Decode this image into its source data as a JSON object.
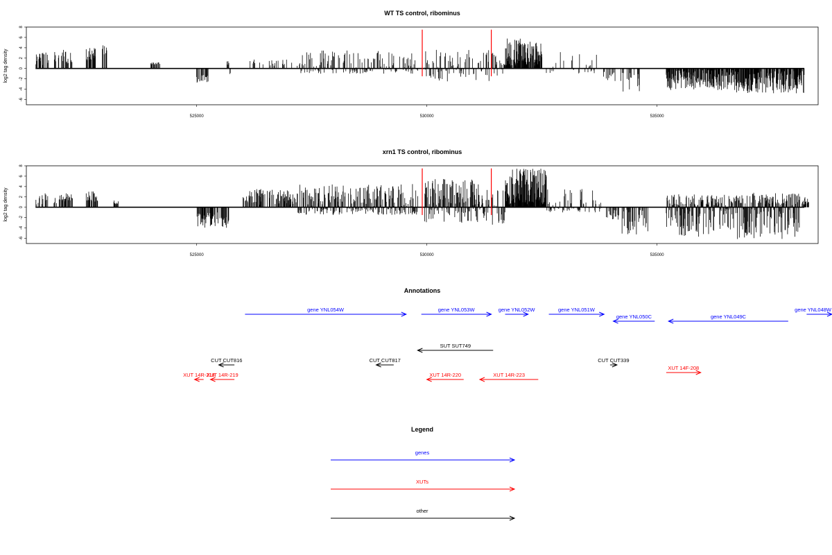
{
  "chart_data": [
    {
      "type": "bar",
      "title": "WT TS control, ribominus",
      "ylabel": "log2 tag density",
      "xlabel": "",
      "xlim": [
        521300,
        538500
      ],
      "ylim": [
        -7,
        8
      ],
      "yticks": [
        8,
        6,
        4,
        2,
        0,
        -2,
        -4,
        -6
      ],
      "xticks": [
        525000,
        530000,
        535000
      ],
      "xticklabels": [
        "525000",
        "530000",
        "535000"
      ],
      "markers": [
        529900,
        531400
      ],
      "segments": [
        {
          "from": 521500,
          "to": 521800,
          "min": 0.5,
          "max": 3.4,
          "density": 0.5,
          "seed": 11
        },
        {
          "from": 521900,
          "to": 522300,
          "min": 0.8,
          "max": 3.7,
          "density": 0.5,
          "seed": 12
        },
        {
          "from": 522600,
          "to": 522800,
          "min": 1.5,
          "max": 4.0,
          "density": 0.7,
          "seed": 13
        },
        {
          "from": 522950,
          "to": 523050,
          "min": 2.0,
          "max": 4.6,
          "density": 0.6,
          "seed": 14
        },
        {
          "from": 524000,
          "to": 524200,
          "min": 0.8,
          "max": 1.2,
          "density": 0.4,
          "seed": 15
        },
        {
          "from": 525000,
          "to": 525250,
          "min": -2.8,
          "max": -1.2,
          "density": 0.6,
          "seed": 16
        },
        {
          "from": 525650,
          "to": 525750,
          "min": -2.5,
          "max": 1.5,
          "density": 0.5,
          "seed": 17
        },
        {
          "from": 526000,
          "to": 527200,
          "min": 0.5,
          "max": 1.8,
          "density": 0.15,
          "seed": 18
        },
        {
          "from": 527200,
          "to": 529800,
          "min": -1.0,
          "max": 3.5,
          "density": 0.45,
          "seed": 19
        },
        {
          "from": 529950,
          "to": 531350,
          "min": -2.5,
          "max": 3.8,
          "density": 0.45,
          "seed": 20
        },
        {
          "from": 531400,
          "to": 531700,
          "min": -1.5,
          "max": 3.0,
          "density": 0.5,
          "seed": 21
        },
        {
          "from": 531700,
          "to": 532500,
          "min": 0.5,
          "max": 5.8,
          "density": 0.9,
          "seed": 22
        },
        {
          "from": 532500,
          "to": 533700,
          "min": -1.0,
          "max": 3.2,
          "density": 0.2,
          "seed": 23
        },
        {
          "from": 533800,
          "to": 534100,
          "min": -2.5,
          "max": -0.5,
          "density": 0.3,
          "seed": 24
        },
        {
          "from": 534200,
          "to": 534700,
          "min": -4.5,
          "max": -0.5,
          "density": 0.25,
          "seed": 25
        },
        {
          "from": 535200,
          "to": 536700,
          "min": -4.2,
          "max": -0.3,
          "density": 0.8,
          "seed": 26
        },
        {
          "from": 536700,
          "to": 538200,
          "min": -4.8,
          "max": -0.5,
          "density": 0.8,
          "seed": 27
        }
      ]
    },
    {
      "type": "bar",
      "title": "xrn1 TS control, ribominus",
      "ylabel": "log2 tag density",
      "xlabel": "",
      "xlim": [
        521300,
        538500
      ],
      "ylim": [
        -7,
        8
      ],
      "yticks": [
        8,
        6,
        4,
        2,
        0,
        -2,
        -4,
        -6
      ],
      "xticks": [
        525000,
        530000,
        535000
      ],
      "xticklabels": [
        "525000",
        "530000",
        "535000"
      ],
      "markers": [
        529900,
        531400
      ],
      "segments": [
        {
          "from": 521500,
          "to": 521800,
          "min": 0.5,
          "max": 2.8,
          "density": 0.4,
          "seed": 31
        },
        {
          "from": 521900,
          "to": 522300,
          "min": 0.8,
          "max": 3.1,
          "density": 0.5,
          "seed": 32
        },
        {
          "from": 522600,
          "to": 522850,
          "min": 1.0,
          "max": 3.1,
          "density": 0.7,
          "seed": 33
        },
        {
          "from": 523200,
          "to": 523300,
          "min": 0.5,
          "max": 1.3,
          "density": 0.4,
          "seed": 34
        },
        {
          "from": 525000,
          "to": 525700,
          "min": -4.0,
          "max": -1.0,
          "density": 0.7,
          "seed": 35
        },
        {
          "from": 526000,
          "to": 527200,
          "min": 0.5,
          "max": 3.5,
          "density": 0.55,
          "seed": 36
        },
        {
          "from": 527200,
          "to": 529800,
          "min": -1.5,
          "max": 4.5,
          "density": 0.8,
          "seed": 37
        },
        {
          "from": 529950,
          "to": 531350,
          "min": -3.0,
          "max": 5.5,
          "density": 0.85,
          "seed": 38
        },
        {
          "from": 531400,
          "to": 531700,
          "min": -3.5,
          "max": 4.0,
          "density": 0.7,
          "seed": 39
        },
        {
          "from": 531700,
          "to": 532600,
          "min": 0.5,
          "max": 7.5,
          "density": 0.95,
          "seed": 40
        },
        {
          "from": 532600,
          "to": 533800,
          "min": -1.0,
          "max": 3.8,
          "density": 0.45,
          "seed": 41
        },
        {
          "from": 533850,
          "to": 534200,
          "min": -2.5,
          "max": -0.5,
          "density": 0.4,
          "seed": 42
        },
        {
          "from": 534200,
          "to": 534800,
          "min": -5.5,
          "max": -0.5,
          "density": 0.35,
          "seed": 43
        },
        {
          "from": 535200,
          "to": 536700,
          "min": -5.8,
          "max": 2.5,
          "density": 0.9,
          "seed": 44
        },
        {
          "from": 536700,
          "to": 538100,
          "min": -6.2,
          "max": 2.8,
          "density": 0.9,
          "seed": 45
        },
        {
          "from": 538150,
          "to": 538300,
          "min": 0.5,
          "max": 2.0,
          "density": 0.8,
          "seed": 46
        }
      ]
    }
  ],
  "annotations": {
    "title": "Annotations",
    "items": [
      {
        "label": "gene YNL054W",
        "type": "gene",
        "row": 0,
        "start": 526050,
        "end": 529550
      },
      {
        "label": "gene YNL053W",
        "type": "gene",
        "row": 0,
        "start": 529880,
        "end": 531400
      },
      {
        "label": "gene YNL052W",
        "type": "gene",
        "row": 0,
        "start": 531700,
        "end": 532200
      },
      {
        "label": "gene YNL051W",
        "type": "gene",
        "row": 0,
        "start": 532650,
        "end": 533850
      },
      {
        "label": "gene YNL050C",
        "type": "gene",
        "row": 1,
        "start": 534950,
        "end": 534050
      },
      {
        "label": "gene YNL049C",
        "type": "gene",
        "row": 1,
        "start": 537850,
        "end": 535250
      },
      {
        "label": "gene YNL048W",
        "type": "gene",
        "row": 0,
        "start": 538250,
        "end": 539200
      },
      {
        "label": "SUT SUT749",
        "type": "other",
        "row": 2,
        "start": 531440,
        "end": 529800
      },
      {
        "label": "CUT CUT816",
        "type": "other",
        "row": 3,
        "start": 525820,
        "end": 525480
      },
      {
        "label": "CUT CUT817",
        "type": "other",
        "row": 3,
        "start": 529280,
        "end": 528900
      },
      {
        "label": "CUT CUT339",
        "type": "other",
        "row": 3,
        "start": 533980,
        "end": 534130
      },
      {
        "label": "XUT 14R-219",
        "type": "xut",
        "row": 4,
        "start": 525820,
        "end": 525300
      },
      {
        "label": "XUT 14R-220",
        "type": "xut",
        "row": 4,
        "start": 530800,
        "end": 530000
      },
      {
        "label": "XUT 14R-223",
        "type": "xut",
        "row": 4,
        "start": 532420,
        "end": 531150
      },
      {
        "label": "XUT 14F-208",
        "type": "xut",
        "row": 5,
        "start": 535200,
        "end": 535950
      }
    ],
    "overlap_label": "XUT 14R-218"
  },
  "legend": {
    "title": "Legend",
    "items": [
      {
        "label": "genes",
        "type": "gene"
      },
      {
        "label": "XUTs",
        "type": "xut"
      },
      {
        "label": "other",
        "type": "other"
      }
    ]
  },
  "colors": {
    "gene": "#0000ff",
    "xut": "#ff0000",
    "other": "#000000",
    "marker": "#ff0000"
  }
}
